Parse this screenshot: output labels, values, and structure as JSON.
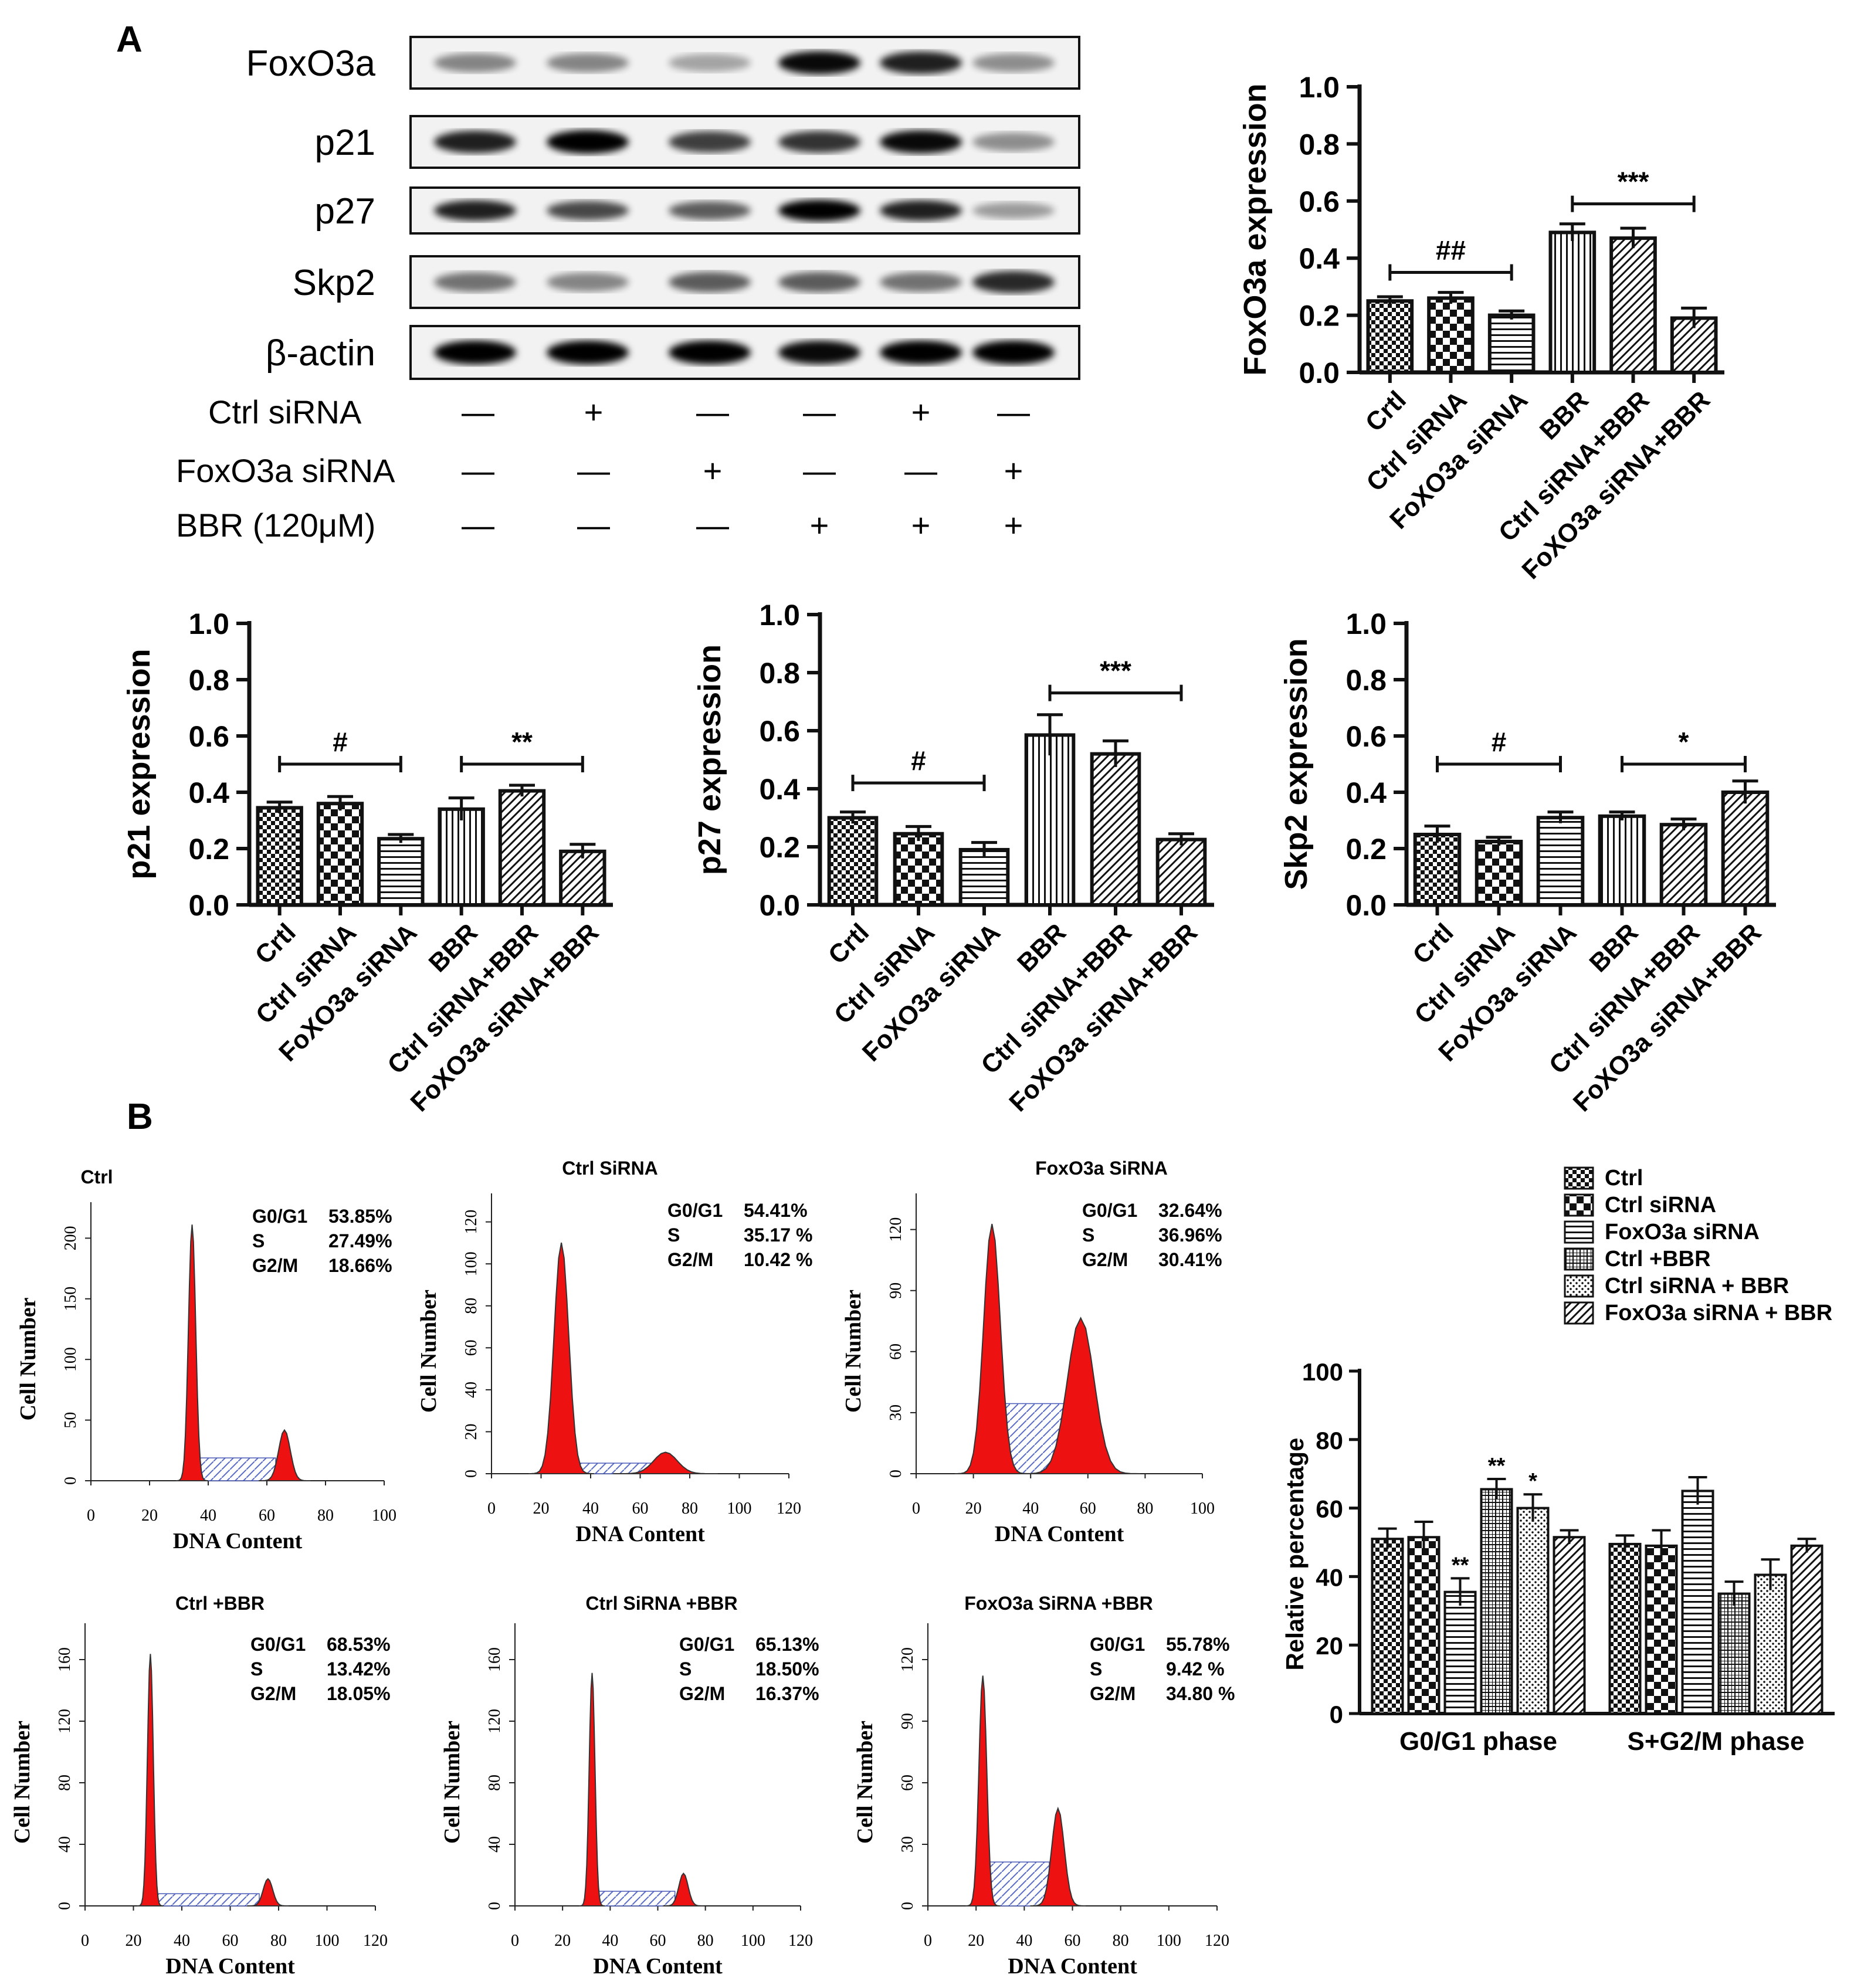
{
  "panel_a": {
    "label": "A",
    "blot_labels": [
      "FoxO3a",
      "p21",
      "p27",
      "Skp2",
      "β-actin"
    ],
    "treatments": [
      {
        "label": "Ctrl siRNA",
        "marks": [
          "—",
          "+",
          "—",
          "—",
          "+",
          "—"
        ]
      },
      {
        "label": "FoxO3a siRNA",
        "marks": [
          "—",
          "—",
          "+",
          "—",
          "—",
          "+"
        ]
      },
      {
        "label": "BBR (120μM)",
        "marks": [
          "—",
          "—",
          "—",
          "+",
          "+",
          "+"
        ]
      }
    ]
  },
  "panel_b": {
    "label": "B"
  },
  "chart_data": [
    {
      "id": "foxo3a",
      "type": "bar",
      "ylabel": "FoxO3a expression",
      "categories": [
        "Crtl",
        "Ctrl siRNA",
        "FoXO3a siRNA",
        "BBR",
        "Ctrl siRNA+BBR",
        "FoXO3a siRNA+BBR"
      ],
      "values": [
        0.25,
        0.26,
        0.2,
        0.49,
        0.47,
        0.19
      ],
      "errors": [
        0.015,
        0.02,
        0.015,
        0.03,
        0.035,
        0.035
      ],
      "ylim": [
        0.0,
        1.0
      ],
      "yticks": [
        "0.0",
        "0.2",
        "0.4",
        "0.6",
        "0.8",
        "1.0"
      ],
      "significance": [
        {
          "from": 0,
          "to": 2,
          "y": 0.35,
          "label": "##"
        },
        {
          "from": 3,
          "to": 5,
          "y": 0.59,
          "label": "***"
        }
      ]
    },
    {
      "id": "p21",
      "type": "bar",
      "ylabel": "p21 expression",
      "categories": [
        "Crtl",
        "Ctrl siRNA",
        "FoXO3a siRNA",
        "BBR",
        "Ctrl siRNA+BBR",
        "FoXO3a siRNA+BBR"
      ],
      "values": [
        0.345,
        0.36,
        0.235,
        0.34,
        0.405,
        0.19
      ],
      "errors": [
        0.02,
        0.025,
        0.015,
        0.04,
        0.02,
        0.025
      ],
      "ylim": [
        0.0,
        1.0
      ],
      "yticks": [
        "0.0",
        "0.2",
        "0.4",
        "0.6",
        "0.8",
        "1.0"
      ],
      "significance": [
        {
          "from": 0,
          "to": 2,
          "y": 0.5,
          "label": "#"
        },
        {
          "from": 3,
          "to": 5,
          "y": 0.5,
          "label": "**"
        }
      ]
    },
    {
      "id": "p27",
      "type": "bar",
      "ylabel": "p27 expression",
      "categories": [
        "Crtl",
        "Ctrl siRNA",
        "FoXO3a siRNA",
        "BBR",
        "Ctrl siRNA+BBR",
        "FoXO3a siRNA+BBR"
      ],
      "values": [
        0.3,
        0.245,
        0.19,
        0.585,
        0.52,
        0.225
      ],
      "errors": [
        0.02,
        0.025,
        0.025,
        0.07,
        0.045,
        0.02
      ],
      "ylim": [
        0.0,
        1.0
      ],
      "yticks": [
        "0.0",
        "0.2",
        "0.4",
        "0.6",
        "0.8",
        "1.0"
      ],
      "significance": [
        {
          "from": 0,
          "to": 2,
          "y": 0.42,
          "label": "#"
        },
        {
          "from": 3,
          "to": 5,
          "y": 0.73,
          "label": "***"
        }
      ]
    },
    {
      "id": "skp2",
      "type": "bar",
      "ylabel": "Skp2 expression",
      "categories": [
        "Crtl",
        "Ctrl siRNA",
        "FoXO3a siRNA",
        "BBR",
        "Ctrl siRNA+BBR",
        "FoXO3a siRNA+BBR"
      ],
      "values": [
        0.25,
        0.225,
        0.31,
        0.315,
        0.285,
        0.4
      ],
      "errors": [
        0.03,
        0.015,
        0.02,
        0.015,
        0.02,
        0.04
      ],
      "ylim": [
        0.0,
        1.0
      ],
      "yticks": [
        "0.0",
        "0.2",
        "0.4",
        "0.6",
        "0.8",
        "1.0"
      ],
      "significance": [
        {
          "from": 0,
          "to": 2,
          "y": 0.5,
          "label": "#"
        },
        {
          "from": 3,
          "to": 5,
          "y": 0.5,
          "label": "*"
        }
      ]
    },
    {
      "id": "cycle_hist",
      "type": "histogram",
      "xlabel": "DNA Content",
      "ylabel": "Cell Number",
      "panels": [
        {
          "title": "Ctrl",
          "xticks": [
            "0",
            "20",
            "40",
            "60",
            "80",
            "100"
          ],
          "yticks": [
            "0",
            "50",
            "100",
            "150",
            "200"
          ],
          "stats": [
            [
              "G0/G1",
              "53.85%"
            ],
            [
              "S",
              "27.49%"
            ],
            [
              "G2/M",
              "18.66%"
            ]
          ]
        },
        {
          "title": "Ctrl SiRNA",
          "xticks": [
            "0",
            "20",
            "40",
            "60",
            "80",
            "100",
            "120"
          ],
          "yticks": [
            "0",
            "20",
            "40",
            "60",
            "80",
            "100",
            "120"
          ],
          "stats": [
            [
              "G0/G1",
              "54.41%"
            ],
            [
              "S",
              "35.17 %"
            ],
            [
              "G2/M",
              "10.42 %"
            ]
          ]
        },
        {
          "title": "FoxO3a SiRNA",
          "xticks": [
            "0",
            "20",
            "40",
            "60",
            "80",
            "100"
          ],
          "yticks": [
            "0",
            "30",
            "60",
            "90",
            "120"
          ],
          "stats": [
            [
              "G0/G1",
              "32.64%"
            ],
            [
              "S",
              "36.96%"
            ],
            [
              "G2/M",
              "30.41%"
            ]
          ]
        },
        {
          "title": "Ctrl +BBR",
          "xticks": [
            "0",
            "20",
            "40",
            "60",
            "80",
            "100",
            "120"
          ],
          "yticks": [
            "0",
            "40",
            "80",
            "120",
            "160"
          ],
          "stats": [
            [
              "G0/G1",
              "68.53%"
            ],
            [
              "S",
              "13.42%"
            ],
            [
              "G2/M",
              "18.05%"
            ]
          ]
        },
        {
          "title": "Ctrl SiRNA +BBR",
          "xticks": [
            "0",
            "20",
            "40",
            "60",
            "80",
            "100",
            "120"
          ],
          "yticks": [
            "0",
            "40",
            "80",
            "120",
            "160"
          ],
          "stats": [
            [
              "G0/G1",
              "65.13%"
            ],
            [
              "S",
              "18.50%"
            ],
            [
              "G2/M",
              "16.37%"
            ]
          ]
        },
        {
          "title": "FoxO3a SiRNA +BBR",
          "xticks": [
            "0",
            "20",
            "40",
            "60",
            "80",
            "100",
            "120"
          ],
          "yticks": [
            "0",
            "30",
            "60",
            "90",
            "120"
          ],
          "stats": [
            [
              "G0/G1",
              "55.78%"
            ],
            [
              "S",
              "9.42 %"
            ],
            [
              "G2/M",
              "34.80 %"
            ]
          ]
        }
      ]
    },
    {
      "id": "cycle_bar",
      "type": "bar",
      "ylabel": "Relative percentage",
      "categories": [
        "G0/G1 phase",
        "S+G2/M phase"
      ],
      "ylim": [
        0,
        100
      ],
      "yticks": [
        "0",
        "20",
        "40",
        "60",
        "80",
        "100"
      ],
      "series": [
        {
          "name": "Ctrl",
          "values": [
            51,
            49.5
          ],
          "errors": [
            3,
            2.5
          ],
          "stars": [
            "",
            ""
          ]
        },
        {
          "name": "Ctrl siRNA",
          "values": [
            51.5,
            49
          ],
          "errors": [
            4.5,
            4.5
          ],
          "stars": [
            "",
            ""
          ]
        },
        {
          "name": "FoxO3a siRNA",
          "values": [
            35.5,
            65
          ],
          "errors": [
            4,
            4
          ],
          "stars": [
            "**",
            ""
          ]
        },
        {
          "name": "Ctrl +BBR",
          "values": [
            65.5,
            35
          ],
          "errors": [
            3,
            3.5
          ],
          "stars": [
            "**",
            ""
          ]
        },
        {
          "name": "Ctrl siRNA + BBR",
          "values": [
            60,
            40.5
          ],
          "errors": [
            4,
            4.5
          ],
          "stars": [
            "*",
            ""
          ]
        },
        {
          "name": "FoxO3a siRNA + BBR",
          "values": [
            51.5,
            49
          ],
          "errors": [
            2,
            2
          ],
          "stars": [
            "",
            ""
          ]
        }
      ]
    }
  ]
}
